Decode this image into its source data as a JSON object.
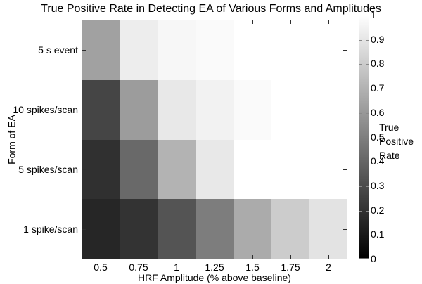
{
  "chart_data": {
    "type": "heatmap",
    "title": "True Positive Rate in Detecting EA of Various Forms and Amplitudes",
    "xlabel": "HRF Amplitude (% above baseline)",
    "ylabel": "Form of EA",
    "x": [
      0.5,
      0.75,
      1,
      1.25,
      1.5,
      1.75,
      2
    ],
    "x_tick_labels": [
      "0.5",
      "0.75",
      "1",
      "1.25",
      "1.5",
      "1.75",
      "2"
    ],
    "y_tick_labels": [
      "5 s event",
      "10 spikes/scan",
      "5 spikes/scan",
      "1 spike/scan"
    ],
    "series": [
      {
        "name": "5 s event",
        "values": [
          0.63,
          0.93,
          0.97,
          0.98,
          1.0,
          1.0,
          1.0
        ]
      },
      {
        "name": "10 spikes/scan",
        "values": [
          0.27,
          0.61,
          0.91,
          0.95,
          0.98,
          1.0,
          1.0
        ]
      },
      {
        "name": "5 spikes/scan",
        "values": [
          0.19,
          0.41,
          0.7,
          0.91,
          1.0,
          1.0,
          1.0
        ]
      },
      {
        "name": "1 spike/scan",
        "values": [
          0.15,
          0.2,
          0.33,
          0.49,
          0.67,
          0.8,
          0.89
        ]
      }
    ],
    "value_range": [
      0,
      1
    ],
    "grid": false,
    "colormap": "gray",
    "colorbar": {
      "position": "right",
      "label": "True Positive Rate",
      "label_lines": [
        "True",
        "Positive",
        "Rate"
      ],
      "tick_labels": [
        "1",
        "0.9",
        "0.8",
        "0.7",
        "0.6",
        "0.5",
        "0.4",
        "0.3",
        "0.2",
        "0.1",
        "0"
      ],
      "tick_values": [
        1,
        0.9,
        0.8,
        0.7,
        0.6,
        0.5,
        0.4,
        0.3,
        0.2,
        0.1,
        0
      ],
      "color_min": "#000000",
      "color_max": "#ffffff"
    }
  }
}
